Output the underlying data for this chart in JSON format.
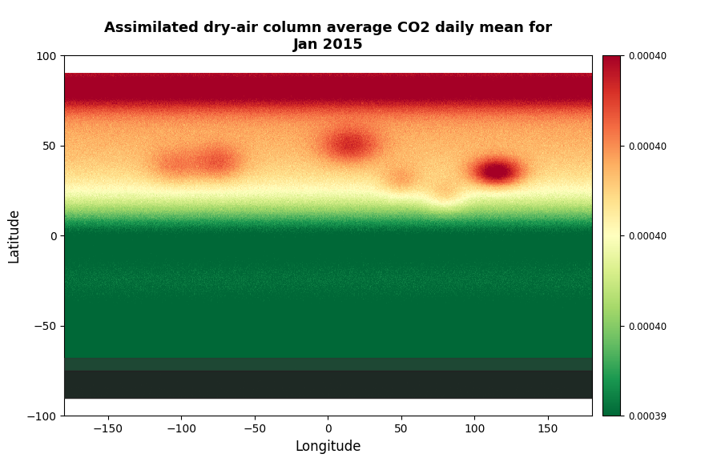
{
  "title": "Assimilated dry-air column average CO2 daily mean for\nJan 2015",
  "xlabel": "Longitude",
  "ylabel": "Latitude",
  "xlim": [
    -180,
    180
  ],
  "ylim": [
    -100,
    100
  ],
  "xticks": [
    -150,
    -100,
    -50,
    0,
    50,
    100,
    150
  ],
  "yticks": [
    -100,
    -50,
    0,
    50,
    100
  ],
  "cmap": "RdYlGn_r",
  "vmin": 0.000393,
  "vmax": 0.000404,
  "background_color": "#ffffff",
  "title_fontsize": 13,
  "axis_label_fontsize": 12,
  "dark_band_color": "#1a1a1a",
  "border_linewidth": 0.8
}
